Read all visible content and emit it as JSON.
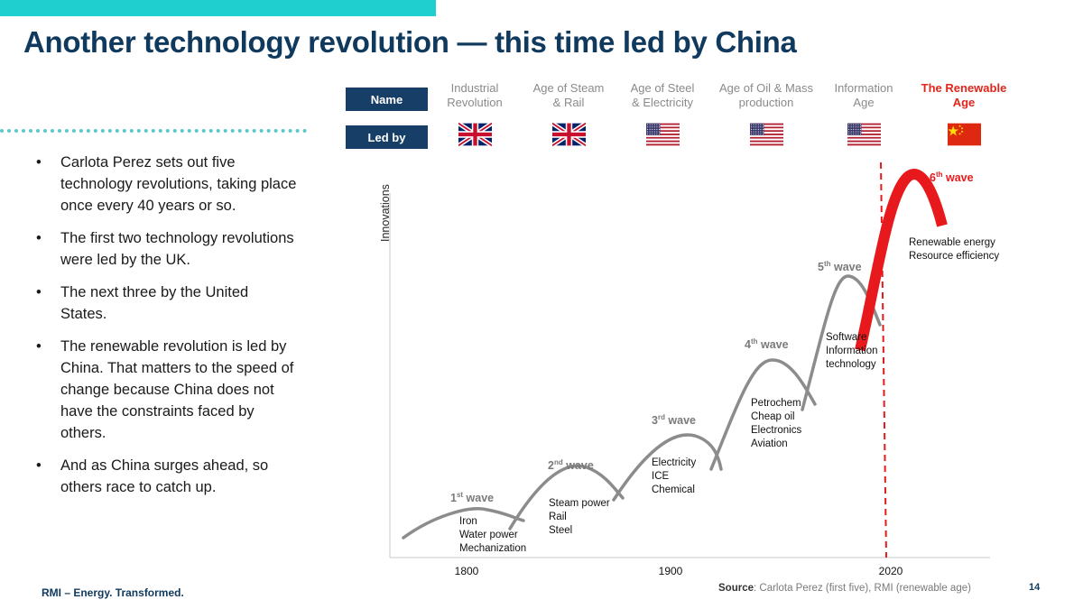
{
  "title": "Another technology revolution — this time led by China",
  "bullets": [
    "Carlota Perez sets out five technology revolutions, taking place once every 40 years or so.",
    "The first two technology revolutions were led by the UK.",
    "The next three by the United States.",
    "The renewable revolution is led by China. That matters to the speed of change because China does not have the constraints faced by others.",
    "And as China surges ahead, so others race to catch up."
  ],
  "table": {
    "name_label": "Name",
    "led_by_label": "Led by",
    "eras": [
      {
        "line1": "Industrial",
        "line2": "Revolution",
        "flag": "uk-flag-icon",
        "highlight": false
      },
      {
        "line1": "Age of Steam",
        "line2": "& Rail",
        "flag": "uk-flag-icon",
        "highlight": false
      },
      {
        "line1": "Age of Steel",
        "line2": "& Electricity",
        "flag": "us-flag-icon",
        "highlight": false
      },
      {
        "line1": "Age of Oil & Mass",
        "line2": "production",
        "flag": "us-flag-icon",
        "highlight": false
      },
      {
        "line1": "Information",
        "line2": "Age",
        "flag": "us-flag-icon",
        "highlight": false
      },
      {
        "line1": "The Renewable",
        "line2": "Age",
        "flag": "china-flag-icon",
        "highlight": true
      }
    ]
  },
  "diagram": {
    "y_label": "Innovations",
    "x_ticks": [
      "1800",
      "1900",
      "2020"
    ],
    "waves": [
      {
        "num": "1",
        "sup": "st",
        "word": " wave",
        "items": [
          "Iron",
          "Water power",
          "Mechanization"
        ]
      },
      {
        "num": "2",
        "sup": "nd",
        "word": " wave",
        "items": [
          "Steam power",
          "Rail",
          "Steel"
        ]
      },
      {
        "num": "3",
        "sup": "rd",
        "word": " wave",
        "items": [
          "Electricity",
          "ICE",
          "Chemical"
        ]
      },
      {
        "num": "4",
        "sup": "th",
        "word": " wave",
        "items": [
          "Petrochem",
          "Cheap oil",
          "Electronics",
          "Aviation"
        ]
      },
      {
        "num": "5",
        "sup": "th",
        "word": " wave",
        "items": [
          "Software",
          "Information",
          "technology"
        ]
      },
      {
        "num": "6",
        "sup": "th",
        "word": " wave",
        "items": [
          "Renewable energy",
          "Resource efficiency"
        ]
      }
    ],
    "colors": {
      "waves": "#8c8c8c",
      "sixth_wave": "#e8191c",
      "divider": "#e8191c",
      "accent": "#1fcfcf",
      "navy": "#10395e"
    }
  },
  "footer": {
    "brand": "RMI – Energy. Transformed.",
    "source_label": "Source",
    "source_text": ": Carlota Perez (first five), RMI (renewable age)",
    "page_number": "14"
  }
}
